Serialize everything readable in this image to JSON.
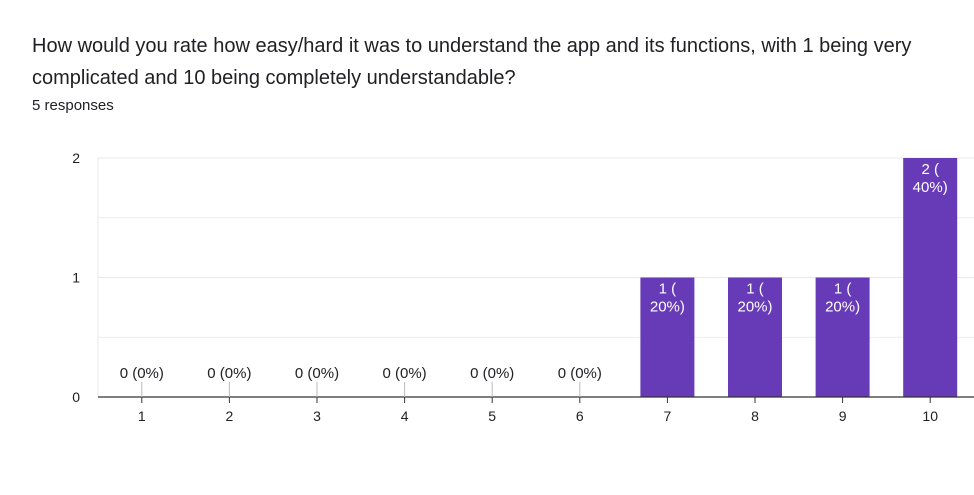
{
  "question": "How would you rate how easy/hard it was to understand the app and its functions, with 1 being very complicated and 10 being completely understandable?",
  "responses_text": "5 responses",
  "colors": {
    "bar": "#673ab7",
    "grid": "#e8e8e8",
    "axis": "#333333",
    "label_outside": "#202124",
    "label_inside": "#ffffff"
  },
  "chart_data": {
    "type": "bar",
    "categories": [
      "1",
      "2",
      "3",
      "4",
      "5",
      "6",
      "7",
      "8",
      "9",
      "10"
    ],
    "values": [
      0,
      0,
      0,
      0,
      0,
      0,
      1,
      1,
      1,
      2
    ],
    "data_labels": [
      "0 (0%)",
      "0 (0%)",
      "0 (0%)",
      "0 (0%)",
      "0 (0%)",
      "0 (0%)",
      "1 (\n20%)",
      "1 (\n20%)",
      "1 (\n20%)",
      "2 (\n40%)"
    ],
    "yticks": [
      "0",
      "1",
      "2"
    ],
    "ylim": [
      0,
      2
    ],
    "grid": true,
    "xlabel": "",
    "ylabel": ""
  }
}
